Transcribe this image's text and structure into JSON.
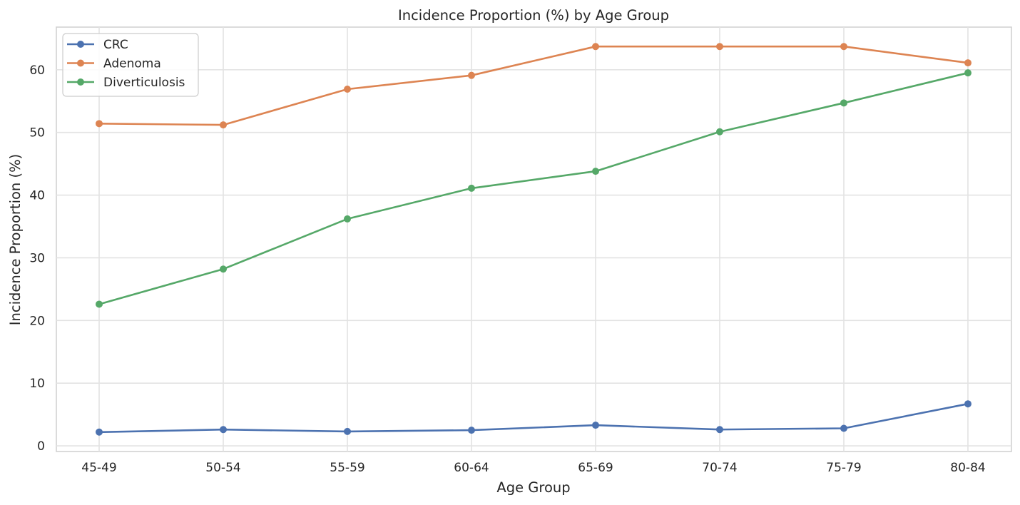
{
  "chart_data": {
    "type": "line",
    "title": "Incidence Proportion (%) by Age Group",
    "xlabel": "Age Group",
    "ylabel": "Incidence Proportion (%)",
    "categories": [
      "45-49",
      "50-54",
      "55-59",
      "60-64",
      "65-69",
      "70-74",
      "75-79",
      "80-84"
    ],
    "ylim": [
      -0.9,
      66.8
    ],
    "yticks": [
      0,
      10,
      20,
      30,
      40,
      50,
      60
    ],
    "grid": true,
    "legend_position": "top-left",
    "markers": true,
    "series": [
      {
        "name": "CRC",
        "color": "#4c72b0",
        "values": [
          2.2,
          2.6,
          2.3,
          2.5,
          3.3,
          2.6,
          2.8,
          6.7
        ]
      },
      {
        "name": "Adenoma",
        "color": "#dd8452",
        "values": [
          51.4,
          51.2,
          56.9,
          59.1,
          63.7,
          63.7,
          63.7,
          61.1
        ]
      },
      {
        "name": "Diverticulosis",
        "color": "#55a868",
        "values": [
          22.6,
          28.2,
          36.2,
          41.1,
          43.8,
          50.1,
          54.7,
          59.5
        ]
      }
    ]
  }
}
